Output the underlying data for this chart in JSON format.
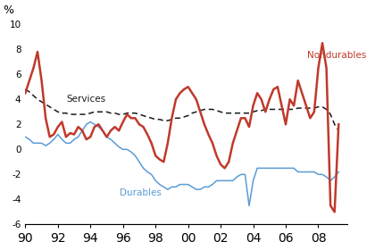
{
  "ylabel": "%",
  "ylim": [
    -6,
    10
  ],
  "yticks": [
    -6,
    -4,
    -2,
    0,
    2,
    4,
    6,
    8,
    10
  ],
  "xtick_labels": [
    "90",
    "92",
    "94",
    "96",
    "98",
    "00",
    "02",
    "04",
    "06",
    "08"
  ],
  "background_color": "#ffffff",
  "nondurables_color": "#c0392b",
  "services_color": "#1a1a1a",
  "durables_color": "#5b9bd5",
  "nondurables_label": "Nondurables",
  "services_label": "Services",
  "durables_label": "Durables",
  "nondurables_x": [
    1990.0,
    1990.25,
    1990.5,
    1990.75,
    1991.0,
    1991.25,
    1991.5,
    1991.75,
    1992.0,
    1992.25,
    1992.5,
    1992.75,
    1993.0,
    1993.25,
    1993.5,
    1993.75,
    1994.0,
    1994.25,
    1994.5,
    1994.75,
    1995.0,
    1995.25,
    1995.5,
    1995.75,
    1996.0,
    1996.25,
    1996.5,
    1996.75,
    1997.0,
    1997.25,
    1997.5,
    1997.75,
    1998.0,
    1998.25,
    1998.5,
    1998.75,
    1999.0,
    1999.25,
    1999.5,
    1999.75,
    2000.0,
    2000.25,
    2000.5,
    2000.75,
    2001.0,
    2001.25,
    2001.5,
    2001.75,
    2002.0,
    2002.25,
    2002.5,
    2002.75,
    2003.0,
    2003.25,
    2003.5,
    2003.75,
    2004.0,
    2004.25,
    2004.5,
    2004.75,
    2005.0,
    2005.25,
    2005.5,
    2005.75,
    2006.0,
    2006.25,
    2006.5,
    2006.75,
    2007.0,
    2007.25,
    2007.5,
    2007.75,
    2008.0,
    2008.25,
    2008.5,
    2008.75,
    2009.0,
    2009.25
  ],
  "nondurables_y": [
    4.5,
    5.5,
    6.5,
    7.8,
    5.5,
    2.5,
    1.0,
    1.2,
    1.8,
    2.2,
    1.0,
    1.3,
    1.2,
    1.8,
    1.5,
    0.8,
    1.0,
    1.8,
    2.0,
    1.5,
    1.0,
    1.5,
    1.8,
    1.5,
    2.2,
    2.8,
    2.5,
    2.5,
    2.0,
    1.8,
    1.2,
    0.5,
    -0.5,
    -0.8,
    -1.0,
    0.5,
    2.5,
    4.0,
    4.5,
    4.8,
    5.0,
    4.5,
    4.0,
    3.0,
    2.0,
    1.2,
    0.5,
    -0.5,
    -1.2,
    -1.5,
    -1.0,
    0.5,
    1.5,
    2.5,
    2.5,
    1.8,
    3.5,
    4.5,
    4.0,
    3.0,
    4.0,
    4.8,
    5.0,
    3.5,
    2.0,
    4.0,
    3.5,
    5.5,
    4.5,
    3.5,
    2.5,
    3.0,
    6.5,
    8.5,
    6.5,
    -4.5,
    -5.0,
    2.0
  ],
  "services_x": [
    1990.0,
    1990.25,
    1990.5,
    1990.75,
    1991.0,
    1991.25,
    1991.5,
    1991.75,
    1992.0,
    1992.25,
    1992.5,
    1992.75,
    1993.0,
    1993.25,
    1993.5,
    1993.75,
    1994.0,
    1994.25,
    1994.5,
    1994.75,
    1995.0,
    1995.25,
    1995.5,
    1995.75,
    1996.0,
    1996.25,
    1996.5,
    1996.75,
    1997.0,
    1997.25,
    1997.5,
    1997.75,
    1998.0,
    1998.25,
    1998.5,
    1998.75,
    1999.0,
    1999.25,
    1999.5,
    1999.75,
    2000.0,
    2000.25,
    2000.5,
    2000.75,
    2001.0,
    2001.25,
    2001.5,
    2001.75,
    2002.0,
    2002.25,
    2002.5,
    2002.75,
    2003.0,
    2003.25,
    2003.5,
    2003.75,
    2004.0,
    2004.25,
    2004.5,
    2004.75,
    2005.0,
    2005.25,
    2005.5,
    2005.75,
    2006.0,
    2006.25,
    2006.5,
    2006.75,
    2007.0,
    2007.25,
    2007.5,
    2007.75,
    2008.0,
    2008.25,
    2008.5,
    2008.75,
    2009.0,
    2009.25
  ],
  "services_y": [
    4.8,
    4.6,
    4.3,
    4.0,
    3.8,
    3.6,
    3.4,
    3.2,
    3.0,
    2.9,
    2.9,
    2.8,
    2.8,
    2.8,
    2.8,
    2.8,
    2.9,
    3.0,
    3.0,
    3.0,
    3.0,
    2.9,
    2.9,
    2.8,
    2.8,
    2.9,
    2.9,
    2.9,
    2.8,
    2.7,
    2.6,
    2.5,
    2.4,
    2.4,
    2.3,
    2.3,
    2.4,
    2.5,
    2.5,
    2.6,
    2.7,
    2.9,
    3.0,
    3.1,
    3.2,
    3.2,
    3.2,
    3.1,
    3.0,
    2.9,
    2.9,
    2.9,
    2.9,
    2.9,
    2.9,
    2.9,
    3.0,
    3.1,
    3.1,
    3.2,
    3.2,
    3.2,
    3.2,
    3.2,
    3.2,
    3.2,
    3.2,
    3.3,
    3.3,
    3.3,
    3.3,
    3.3,
    3.4,
    3.4,
    3.2,
    2.8,
    2.0,
    1.5
  ],
  "durables_x": [
    1990.0,
    1990.25,
    1990.5,
    1990.75,
    1991.0,
    1991.25,
    1991.5,
    1991.75,
    1992.0,
    1992.25,
    1992.5,
    1992.75,
    1993.0,
    1993.25,
    1993.5,
    1993.75,
    1994.0,
    1994.25,
    1994.5,
    1994.75,
    1995.0,
    1995.25,
    1995.5,
    1995.75,
    1996.0,
    1996.25,
    1996.5,
    1996.75,
    1997.0,
    1997.25,
    1997.5,
    1997.75,
    1998.0,
    1998.25,
    1998.5,
    1998.75,
    1999.0,
    1999.25,
    1999.5,
    1999.75,
    2000.0,
    2000.25,
    2000.5,
    2000.75,
    2001.0,
    2001.25,
    2001.5,
    2001.75,
    2002.0,
    2002.25,
    2002.5,
    2002.75,
    2003.0,
    2003.25,
    2003.5,
    2003.75,
    2004.0,
    2004.25,
    2004.5,
    2004.75,
    2005.0,
    2005.25,
    2005.5,
    2005.75,
    2006.0,
    2006.25,
    2006.5,
    2006.75,
    2007.0,
    2007.25,
    2007.5,
    2007.75,
    2008.0,
    2008.25,
    2008.5,
    2008.75,
    2009.0,
    2009.25
  ],
  "durables_y": [
    1.0,
    0.8,
    0.5,
    0.5,
    0.5,
    0.3,
    0.5,
    0.8,
    1.2,
    0.8,
    0.5,
    0.5,
    0.8,
    1.0,
    1.5,
    2.0,
    2.2,
    2.0,
    1.8,
    1.5,
    1.0,
    0.8,
    0.5,
    0.2,
    0.0,
    0.0,
    -0.2,
    -0.5,
    -1.0,
    -1.5,
    -1.8,
    -2.0,
    -2.5,
    -2.8,
    -3.0,
    -3.2,
    -3.0,
    -3.0,
    -2.8,
    -2.8,
    -2.8,
    -3.0,
    -3.2,
    -3.2,
    -3.0,
    -3.0,
    -2.8,
    -2.5,
    -2.5,
    -2.5,
    -2.5,
    -2.5,
    -2.2,
    -2.0,
    -2.0,
    -4.5,
    -2.5,
    -1.5,
    -1.5,
    -1.5,
    -1.5,
    -1.5,
    -1.5,
    -1.5,
    -1.5,
    -1.5,
    -1.5,
    -1.8,
    -1.8,
    -1.8,
    -1.8,
    -1.8,
    -2.0,
    -2.0,
    -2.2,
    -2.5,
    -2.2,
    -1.8
  ]
}
